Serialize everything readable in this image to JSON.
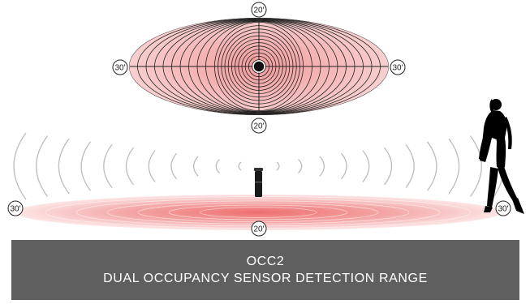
{
  "top_view": {
    "label_top": "20'",
    "label_bottom": "20'",
    "label_left": "30'",
    "label_right": "30'"
  },
  "side_view": {
    "label_left": "30'",
    "label_right": "30'",
    "label_bottom": "20'"
  },
  "caption": {
    "model": "OCC2",
    "title": "DUAL OCCUPANCY SENSOR DETECTION RANGE"
  },
  "colors": {
    "range_fill": "#f7c9c9",
    "range_core": "#ee6e6e",
    "contour_stroke": "#222222",
    "wave_stroke": "#bdbdbd",
    "caption_bg": "#5f5f5f",
    "caption_text": "#ffffff"
  },
  "icons": {
    "sensor": "sensor-icon",
    "person": "walking-person-icon"
  }
}
